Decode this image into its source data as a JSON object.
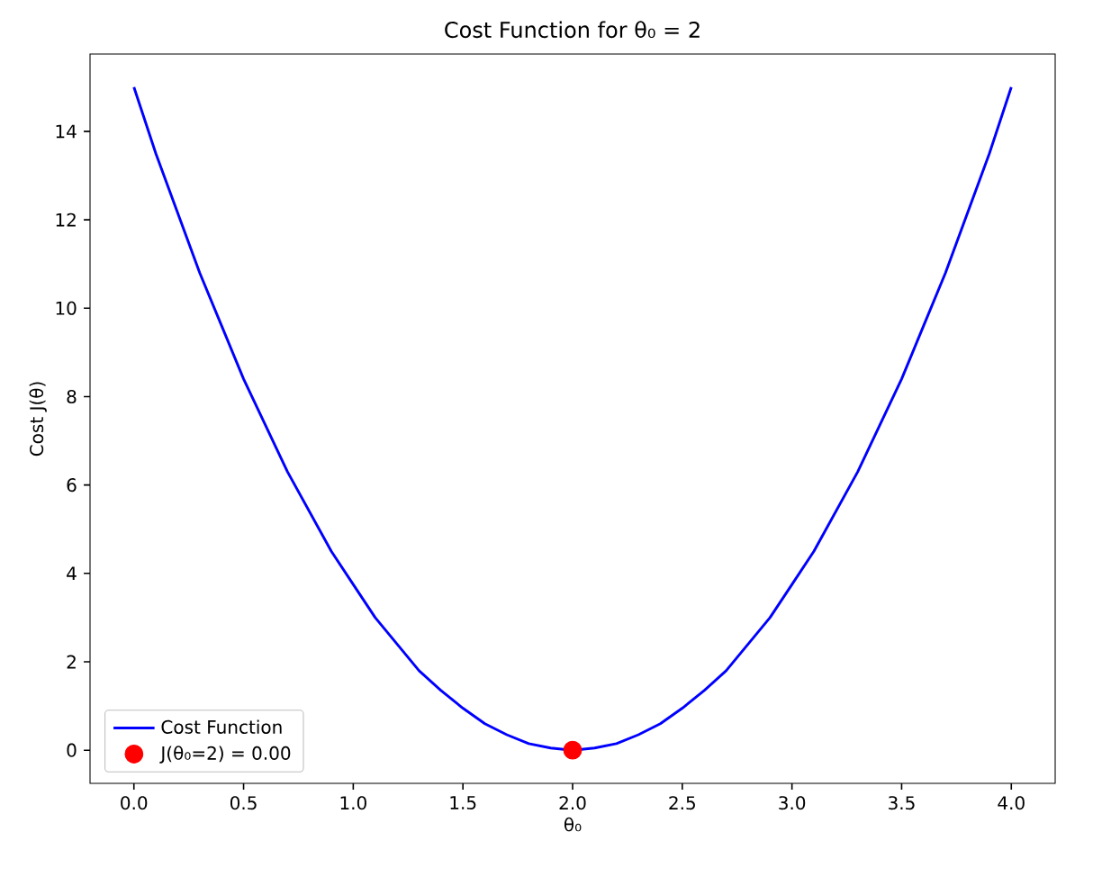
{
  "chart_data": {
    "type": "line",
    "title": "Cost Function for θ₀ = 2",
    "xlabel": "θ₀",
    "ylabel": "Cost J(θ)",
    "series": [
      {
        "name": "Cost Function",
        "type": "line",
        "color": "#0000ff",
        "x": [
          0,
          0.1,
          0.2,
          0.3,
          0.4,
          0.5,
          0.6,
          0.7,
          0.8,
          0.9,
          1.0,
          1.1,
          1.2,
          1.3,
          1.4,
          1.5,
          1.6,
          1.7,
          1.8,
          1.9,
          2.0,
          2.1,
          2.2,
          2.3,
          2.4,
          2.5,
          2.6,
          2.7,
          2.8,
          2.9,
          3.0,
          3.1,
          3.2,
          3.3,
          3.4,
          3.5,
          3.6,
          3.7,
          3.8,
          3.9,
          4.0
        ],
        "values": [
          15,
          13.5,
          12.15,
          10.8,
          9.6,
          8.4,
          7.35,
          6.3,
          5.4,
          4.5,
          3.75,
          3.0,
          2.4,
          1.8,
          1.35,
          0.95,
          0.6,
          0.35,
          0.15,
          0.05,
          0,
          0.05,
          0.15,
          0.35,
          0.6,
          0.95,
          1.35,
          1.8,
          2.4,
          3.0,
          3.75,
          4.5,
          5.4,
          6.3,
          7.35,
          8.4,
          9.6,
          10.8,
          12.15,
          13.5,
          15
        ]
      },
      {
        "name": "J(θ₀=2) = 0.00",
        "type": "scatter",
        "marker": "circle",
        "color": "#ff0000",
        "x": [
          2.0
        ],
        "values": [
          0
        ]
      }
    ],
    "xlim": [
      -0.2,
      4.2
    ],
    "ylim": [
      -0.75,
      15.75
    ],
    "xticks": [
      {
        "value": 0,
        "label": "0.0"
      },
      {
        "value": 0.5,
        "label": "0.5"
      },
      {
        "value": 1,
        "label": "1.0"
      },
      {
        "value": 1.5,
        "label": "1.5"
      },
      {
        "value": 2,
        "label": "2.0"
      },
      {
        "value": 2.5,
        "label": "2.5"
      },
      {
        "value": 3,
        "label": "3.0"
      },
      {
        "value": 3.5,
        "label": "3.5"
      },
      {
        "value": 4,
        "label": "4.0"
      }
    ],
    "yticks": [
      0,
      2,
      4,
      6,
      8,
      10,
      12,
      14
    ],
    "legend": "bottom left"
  }
}
